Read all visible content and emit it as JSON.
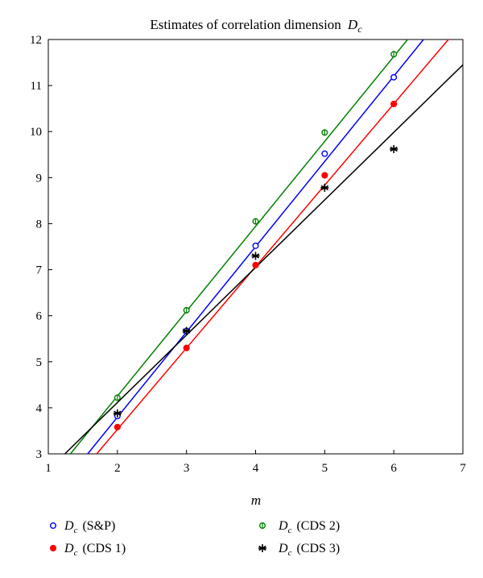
{
  "chart_data": {
    "type": "scatter",
    "title_text": "Estimates of correlation dimension",
    "title_symbol": "D",
    "title_subscript": "c",
    "xlabel": "m",
    "ylabel": "",
    "xlim": [
      1,
      7
    ],
    "ylim": [
      3,
      12
    ],
    "xticks": [
      1,
      2,
      3,
      4,
      5,
      6,
      7
    ],
    "yticks": [
      3,
      4,
      5,
      6,
      7,
      8,
      9,
      10,
      11,
      12
    ],
    "grid": false,
    "legend_position": "below",
    "series": [
      {
        "name": "(S&P)",
        "symbol": "D",
        "subscript": "c",
        "marker": "open-circle",
        "color": "#0000ff",
        "x": [
          2,
          3,
          4,
          5,
          6
        ],
        "y": [
          3.82,
          5.67,
          7.52,
          9.52,
          11.18
        ],
        "fit": [
          [
            1.57,
            3
          ],
          [
            6.43,
            12
          ]
        ]
      },
      {
        "name": "(CDS 1)",
        "symbol": "D",
        "subscript": "c",
        "marker": "filled-circle",
        "color": "#ff0000",
        "x": [
          2,
          3,
          4,
          5,
          6
        ],
        "y": [
          3.58,
          5.3,
          7.1,
          9.05,
          10.6
        ],
        "fit": [
          [
            1.7,
            3
          ],
          [
            6.79,
            12
          ]
        ]
      },
      {
        "name": "(CDS 2)",
        "symbol": "D",
        "subscript": "c",
        "marker": "open-circle-bar",
        "color": "#008000",
        "x": [
          2,
          3,
          4,
          5,
          6
        ],
        "y": [
          4.22,
          6.12,
          8.05,
          9.98,
          11.68
        ],
        "fit": [
          [
            1.32,
            3
          ],
          [
            6.2,
            12
          ]
        ]
      },
      {
        "name": "(CDS 3)",
        "symbol": "D",
        "subscript": "c",
        "marker": "asterisk",
        "color": "#000000",
        "x": [
          2,
          3,
          4,
          5,
          6
        ],
        "y": [
          3.88,
          5.67,
          7.3,
          8.78,
          9.62
        ],
        "fit": [
          [
            1.24,
            3
          ],
          [
            7,
            11.45
          ]
        ]
      }
    ]
  }
}
